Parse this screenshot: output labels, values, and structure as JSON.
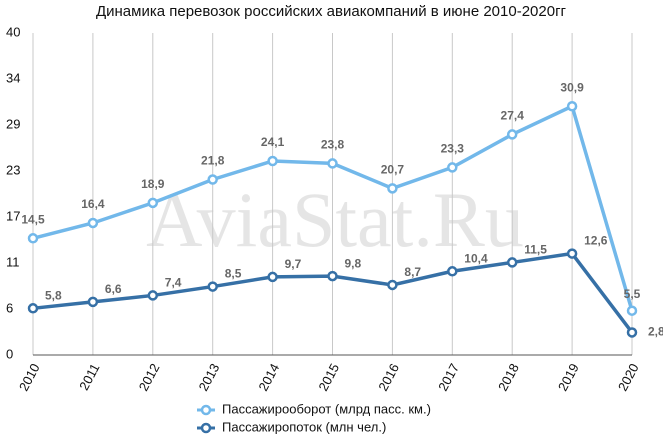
{
  "chart_data": {
    "type": "line",
    "title": "Динамика перевозок российских авиакомпаний в июне 2010-2020гг",
    "watermark": "AviaStat.Ru",
    "categories": [
      "2010",
      "2011",
      "2012",
      "2013",
      "2014",
      "2015",
      "2016",
      "2017",
      "2018",
      "2019",
      "2020"
    ],
    "series": [
      {
        "name": "Пассажирооборот (млрд пасс. км.)",
        "color": "#72b8ea",
        "values": [
          14.5,
          16.4,
          18.9,
          21.8,
          24.1,
          23.8,
          20.7,
          23.3,
          27.4,
          30.9,
          5.5
        ],
        "value_labels": [
          "14,5",
          "16,4",
          "18,9",
          "21,8",
          "24,1",
          "23,8",
          "20,7",
          "23,3",
          "27,4",
          "30,9",
          "5,5"
        ]
      },
      {
        "name": "Пассажиропоток (млн чел.)",
        "color": "#3670a6",
        "values": [
          5.8,
          6.6,
          7.4,
          8.5,
          9.7,
          9.8,
          8.7,
          10.4,
          11.5,
          12.6,
          2.8
        ],
        "value_labels": [
          "5,8",
          "6,6",
          "7,4",
          "8,5",
          "9,7",
          "9,8",
          "8,7",
          "10,4",
          "11,5",
          "12,6",
          "2,8"
        ]
      }
    ],
    "ylim": [
      0,
      40
    ],
    "yticks": [
      0,
      {
        "value": 5.714,
        "label": "6"
      },
      {
        "value": 11.43,
        "label": "11"
      },
      {
        "value": 17.14,
        "label": "17"
      },
      {
        "value": 22.86,
        "label": "23"
      },
      {
        "value": 28.57,
        "label": "29"
      },
      {
        "value": 34.29,
        "label": "34"
      },
      40
    ],
    "grid": true,
    "legend": "bottom"
  }
}
